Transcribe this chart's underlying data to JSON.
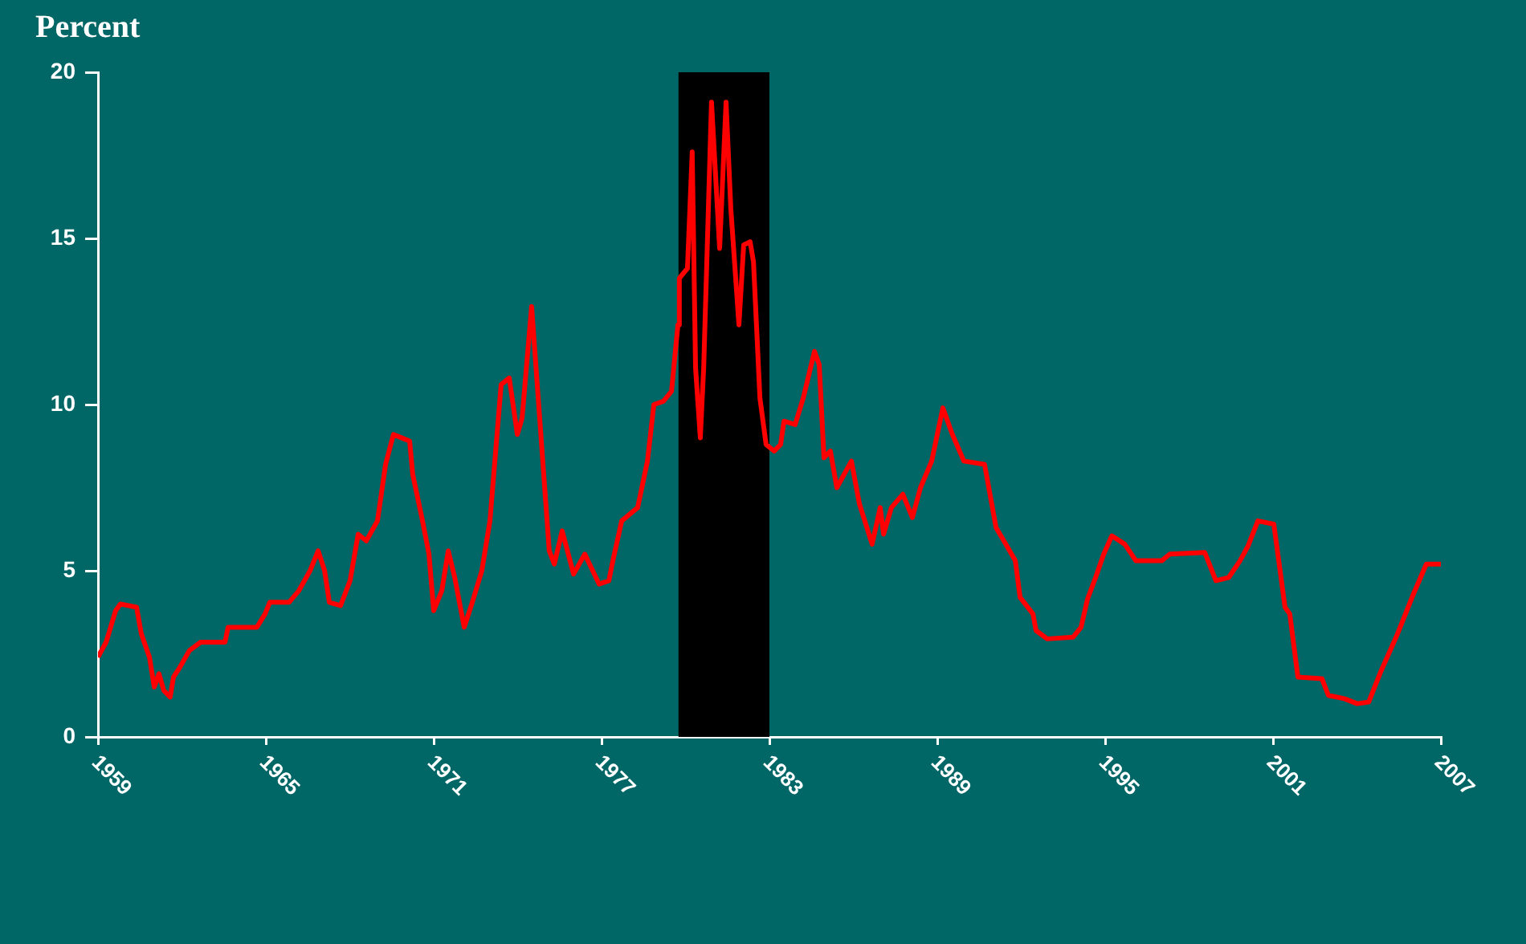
{
  "chart_data": {
    "type": "line",
    "ylabel": "Percent",
    "x": [
      1959.0,
      1959.29,
      1959.63,
      1959.8,
      1960.38,
      1960.55,
      1960.84,
      1961.01,
      1961.18,
      1961.35,
      1961.58,
      1961.7,
      1961.93,
      1962.27,
      1962.67,
      1963.54,
      1963.65,
      1964.68,
      1964.97,
      1965.14,
      1965.83,
      1966.18,
      1966.58,
      1966.87,
      1967.1,
      1967.27,
      1967.67,
      1968.01,
      1968.3,
      1968.59,
      1968.99,
      1969.28,
      1969.56,
      1969.85,
      1970.14,
      1970.25,
      1970.6,
      1970.83,
      1971.0,
      1971.29,
      1971.52,
      1971.75,
      1972.09,
      1972.38,
      1972.72,
      1973.01,
      1973.41,
      1973.7,
      1973.99,
      1974.16,
      1974.5,
      1975.13,
      1975.31,
      1975.59,
      1976.0,
      1976.4,
      1976.91,
      1977.26,
      1977.43,
      1977.72,
      1978.29,
      1978.64,
      1978.87,
      1979.21,
      1979.5,
      1979.73,
      1979.78,
      1980.07,
      1980.24,
      1980.36,
      1980.53,
      1980.65,
      1980.93,
      1981.22,
      1981.45,
      1981.62,
      1981.91,
      1982.08,
      1982.31,
      1982.43,
      1982.66,
      1982.88,
      1983.17,
      1983.4,
      1983.52,
      1983.92,
      1984.21,
      1984.61,
      1984.78,
      1984.95,
      1985.18,
      1985.41,
      1985.93,
      1986.22,
      1986.67,
      1986.96,
      1987.08,
      1987.36,
      1987.77,
      1988.11,
      1988.4,
      1988.8,
      1989.2,
      1989.54,
      1989.95,
      1990.69,
      1991.1,
      1991.38,
      1991.79,
      1991.96,
      1992.42,
      1992.53,
      1992.93,
      1993.85,
      1994.14,
      1994.37,
      1994.66,
      1994.95,
      1995.24,
      1995.7,
      1996.1,
      1997.02,
      1997.31,
      1998.56,
      1998.96,
      1999.42,
      1999.82,
      2000.11,
      2000.46,
      2001.03,
      2001.43,
      2001.6,
      2001.89,
      2002.75,
      2002.98,
      2003.55,
      2004.01,
      2004.42,
      2004.87,
      2005.45,
      2006.02,
      2006.48,
      2007.0
    ],
    "series": [
      {
        "color": "#ff0000",
        "values": [
          2.4,
          2.85,
          3.8,
          4.0,
          3.9,
          3.1,
          2.4,
          1.5,
          1.9,
          1.4,
          1.2,
          1.8,
          2.1,
          2.6,
          2.85,
          2.85,
          3.3,
          3.3,
          3.7,
          4.05,
          4.05,
          4.4,
          5.0,
          5.6,
          5.0,
          4.05,
          3.95,
          4.7,
          6.1,
          5.9,
          6.5,
          8.2,
          9.1,
          9.0,
          8.9,
          7.9,
          6.5,
          5.5,
          3.8,
          4.4,
          5.6,
          4.8,
          3.3,
          4.05,
          5.0,
          6.5,
          10.6,
          10.8,
          9.1,
          9.6,
          12.95,
          5.6,
          5.2,
          6.2,
          4.9,
          5.5,
          4.6,
          4.7,
          5.4,
          6.5,
          6.9,
          8.3,
          10.0,
          10.1,
          10.4,
          12.4,
          13.8,
          14.1,
          17.6,
          11.1,
          9.0,
          11.1,
          19.1,
          14.7,
          19.1,
          15.9,
          12.4,
          14.8,
          14.9,
          14.3,
          10.2,
          8.8,
          8.6,
          8.8,
          9.5,
          9.4,
          10.2,
          11.6,
          11.2,
          8.4,
          8.6,
          7.5,
          8.3,
          7.0,
          5.8,
          6.9,
          6.1,
          6.9,
          7.3,
          6.6,
          7.5,
          8.3,
          9.9,
          9.1,
          8.3,
          8.2,
          6.3,
          5.9,
          5.3,
          4.2,
          3.7,
          3.2,
          2.95,
          3.0,
          3.3,
          4.15,
          4.8,
          5.5,
          6.05,
          5.8,
          5.3,
          5.3,
          5.5,
          5.55,
          4.7,
          4.8,
          5.3,
          5.75,
          6.5,
          6.4,
          3.9,
          3.7,
          1.8,
          1.75,
          1.25,
          1.15,
          1.0,
          1.05,
          2.0,
          3.1,
          4.3,
          5.2,
          5.2
        ]
      }
    ],
    "xlim": [
      1959,
      2007
    ],
    "xticks": [
      1959,
      1965,
      1971,
      1977,
      1983,
      1989,
      1995,
      2001,
      2007
    ],
    "ylim": [
      0,
      20
    ],
    "yticks": [
      0,
      5,
      10,
      15,
      20
    ],
    "bands": [
      {
        "axis": "x",
        "from": 1979.75,
        "to": 1983.0,
        "color": "#000000"
      }
    ],
    "grid": false,
    "legend": false,
    "marker": "none",
    "line_style": "solid"
  }
}
